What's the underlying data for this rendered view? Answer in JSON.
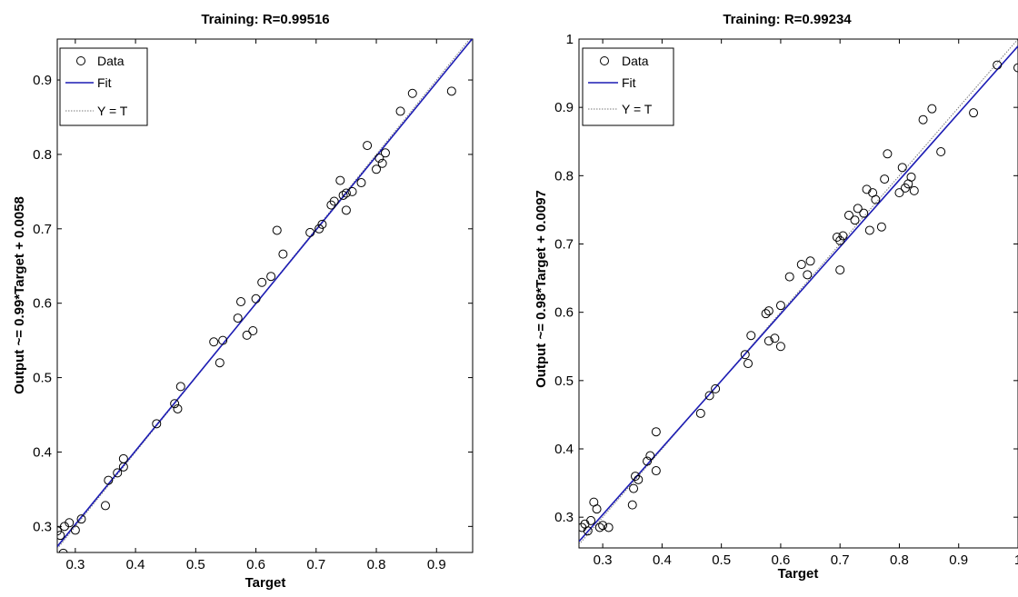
{
  "chart_data": [
    {
      "type": "scatter",
      "title": "Training: R=0.99516",
      "xlabel": "Target",
      "ylabel": "Output ~= 0.99*Target + 0.0058",
      "xlim": [
        0.27,
        0.96
      ],
      "ylim": [
        0.265,
        0.955
      ],
      "xticks": [
        0.3,
        0.4,
        0.5,
        0.6,
        0.7,
        0.8,
        0.9
      ],
      "xtick_labels": [
        "0.3",
        "0.4",
        "0.5",
        "0.6",
        "0.7",
        "0.8",
        "0.9"
      ],
      "yticks": [
        0.3,
        0.4,
        0.5,
        0.6,
        0.7,
        0.8,
        0.9
      ],
      "ytick_labels": [
        "0.3",
        "0.4",
        "0.5",
        "0.6",
        "0.7",
        "0.8",
        "0.9"
      ],
      "grid": false,
      "legend": {
        "position": "top-left",
        "entries": [
          "Data",
          "Fit",
          "Y = T"
        ]
      },
      "fit": {
        "slope": 0.99,
        "intercept": 0.0058
      },
      "series": [
        {
          "name": "Data",
          "x": [
            0.27,
            0.275,
            0.28,
            0.282,
            0.29,
            0.3,
            0.31,
            0.35,
            0.355,
            0.37,
            0.38,
            0.38,
            0.435,
            0.465,
            0.47,
            0.475,
            0.53,
            0.54,
            0.545,
            0.57,
            0.575,
            0.585,
            0.595,
            0.6,
            0.61,
            0.625,
            0.635,
            0.645,
            0.69,
            0.705,
            0.71,
            0.725,
            0.73,
            0.74,
            0.745,
            0.75,
            0.75,
            0.76,
            0.775,
            0.785,
            0.8,
            0.805,
            0.81,
            0.815,
            0.84,
            0.86,
            0.925
          ],
          "y": [
            0.294,
            0.288,
            0.264,
            0.3,
            0.305,
            0.295,
            0.31,
            0.328,
            0.362,
            0.372,
            0.38,
            0.391,
            0.438,
            0.465,
            0.458,
            0.488,
            0.548,
            0.52,
            0.55,
            0.58,
            0.602,
            0.557,
            0.563,
            0.606,
            0.628,
            0.636,
            0.698,
            0.666,
            0.695,
            0.7,
            0.706,
            0.732,
            0.737,
            0.765,
            0.745,
            0.748,
            0.725,
            0.75,
            0.762,
            0.812,
            0.78,
            0.795,
            0.788,
            0.802,
            0.858,
            0.882,
            0.885
          ]
        },
        {
          "name": "Fit",
          "x": [
            0.27,
            0.96
          ],
          "y": [
            0.273,
            0.956
          ]
        },
        {
          "name": "Y = T",
          "x": [
            0.27,
            0.96
          ],
          "y": [
            0.27,
            0.96
          ]
        }
      ]
    },
    {
      "type": "scatter",
      "title": "Training: R=0.99234",
      "xlabel": "Target",
      "ylabel": "Output ~= 0.98*Target + 0.0097",
      "xlim": [
        0.26,
        1.0
      ],
      "ylim": [
        0.255,
        1.0
      ],
      "xticks": [
        0.3,
        0.4,
        0.5,
        0.6,
        0.7,
        0.8,
        0.9,
        1.0
      ],
      "xtick_labels": [
        "0.3",
        "0.4",
        "0.5",
        "0.6",
        "0.7",
        "0.8",
        "0.9",
        "1"
      ],
      "yticks": [
        0.3,
        0.4,
        0.5,
        0.6,
        0.7,
        0.8,
        0.9,
        1.0
      ],
      "ytick_labels": [
        "0.3",
        "0.4",
        "0.5",
        "0.6",
        "0.7",
        "0.8",
        "0.9",
        "1"
      ],
      "grid": false,
      "legend": {
        "position": "top-left",
        "entries": [
          "Data",
          "Fit",
          "Y = T"
        ]
      },
      "fit": {
        "slope": 0.98,
        "intercept": 0.0097
      },
      "series": [
        {
          "name": "Data",
          "x": [
            0.265,
            0.27,
            0.275,
            0.28,
            0.285,
            0.29,
            0.295,
            0.3,
            0.31,
            0.35,
            0.352,
            0.355,
            0.36,
            0.375,
            0.38,
            0.39,
            0.39,
            0.465,
            0.48,
            0.49,
            0.54,
            0.545,
            0.55,
            0.575,
            0.58,
            0.58,
            0.59,
            0.6,
            0.6,
            0.615,
            0.635,
            0.645,
            0.65,
            0.695,
            0.7,
            0.7,
            0.705,
            0.715,
            0.725,
            0.73,
            0.74,
            0.745,
            0.75,
            0.755,
            0.76,
            0.77,
            0.775,
            0.78,
            0.8,
            0.805,
            0.81,
            0.815,
            0.82,
            0.825,
            0.84,
            0.855,
            0.87,
            0.925,
            0.965,
            1.0
          ],
          "y": [
            0.285,
            0.29,
            0.28,
            0.295,
            0.322,
            0.312,
            0.285,
            0.288,
            0.285,
            0.318,
            0.342,
            0.36,
            0.355,
            0.382,
            0.39,
            0.425,
            0.368,
            0.452,
            0.478,
            0.488,
            0.538,
            0.525,
            0.566,
            0.598,
            0.558,
            0.602,
            0.562,
            0.61,
            0.55,
            0.652,
            0.67,
            0.655,
            0.675,
            0.71,
            0.705,
            0.662,
            0.712,
            0.742,
            0.735,
            0.752,
            0.745,
            0.78,
            0.72,
            0.775,
            0.765,
            0.725,
            0.795,
            0.832,
            0.775,
            0.812,
            0.782,
            0.788,
            0.798,
            0.778,
            0.882,
            0.898,
            0.835,
            0.892,
            0.962,
            0.958
          ]
        },
        {
          "name": "Fit",
          "x": [
            0.26,
            1.0
          ],
          "y": [
            0.2645,
            0.9897
          ]
        },
        {
          "name": "Y = T",
          "x": [
            0.26,
            1.0
          ],
          "y": [
            0.26,
            1.0
          ]
        }
      ]
    }
  ]
}
